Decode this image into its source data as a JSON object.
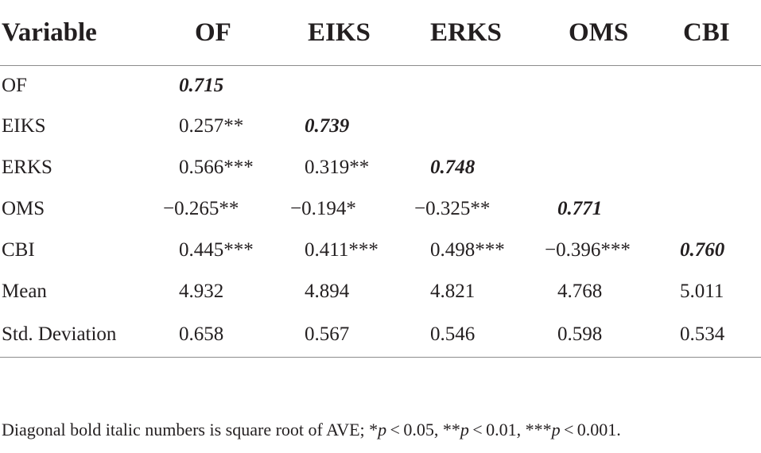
{
  "table": {
    "headers": [
      "Variable",
      "OF",
      "EIKS",
      "ERKS",
      "OMS",
      "CBI"
    ],
    "rows": [
      {
        "label": "OF",
        "cells": [
          "0.715",
          "",
          "",
          "",
          ""
        ]
      },
      {
        "label": "EIKS",
        "cells": [
          "0.257**",
          "0.739",
          "",
          "",
          ""
        ]
      },
      {
        "label": "ERKS",
        "cells": [
          "0.566***",
          "0.319**",
          "0.748",
          "",
          ""
        ]
      },
      {
        "label": "OMS",
        "cells": [
          "−0.265**",
          "−0.194*",
          "−0.325**",
          "0.771",
          ""
        ]
      },
      {
        "label": "CBI",
        "cells": [
          "0.445***",
          "0.411***",
          "0.498***",
          "−0.396***",
          "0.760"
        ]
      },
      {
        "label": "Mean",
        "cells": [
          "4.932",
          "4.894",
          "4.821",
          "4.768",
          "5.011"
        ]
      },
      {
        "label": "Std. Deviation",
        "cells": [
          "0.658",
          "0.567",
          "0.546",
          "0.598",
          "0.534"
        ]
      }
    ]
  },
  "footnote": {
    "text_a": "Diagonal bold italic numbers is square root of AVE; *",
    "p1": "p",
    "text_b": " < 0.05, **",
    "p2": "p",
    "text_c": " < 0.01, ***",
    "p3": "p",
    "text_d": " < 0.001."
  }
}
